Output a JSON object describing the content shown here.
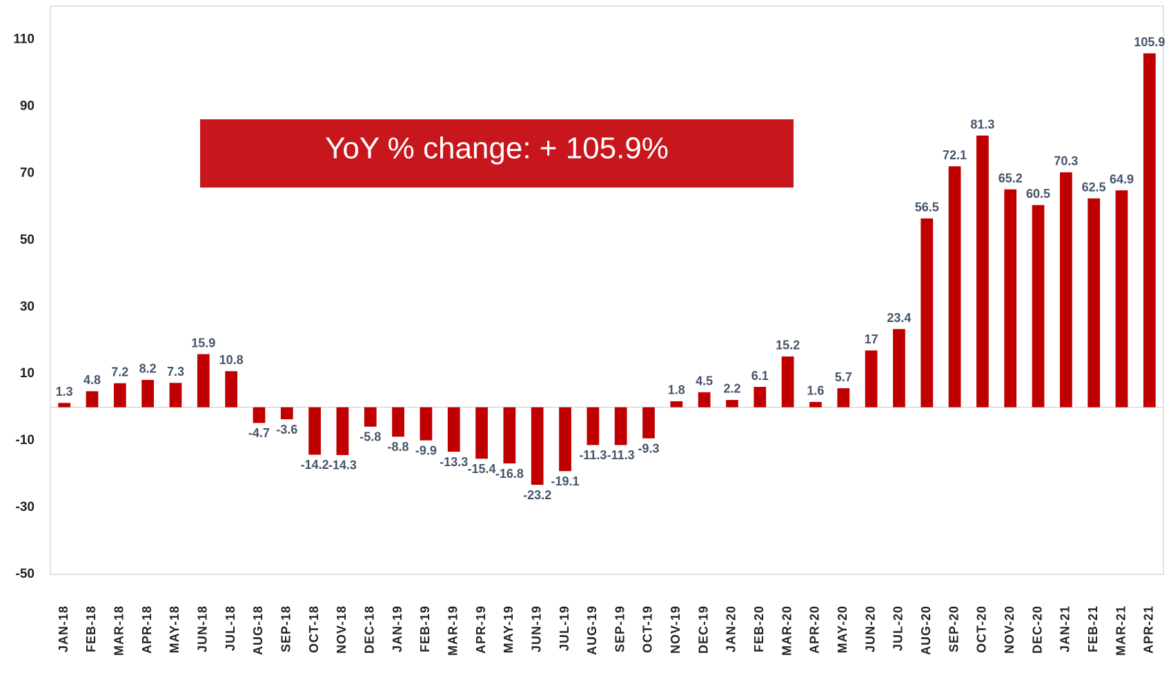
{
  "chart_data": {
    "type": "bar",
    "annotation": "YoY % change: + 105.9%",
    "categories": [
      "JAN-18",
      "FEB-18",
      "MAR-18",
      "APR-18",
      "MAY-18",
      "JUN-18",
      "JUL-18",
      "AUG-18",
      "SEP-18",
      "OCT-18",
      "NOV-18",
      "DEC-18",
      "JAN-19",
      "FEB-19",
      "MAR-19",
      "APR-19",
      "MAY-19",
      "JUN-19",
      "JUL-19",
      "AUG-19",
      "SEP-19",
      "OCT-19",
      "NOV-19",
      "DEC-19",
      "JAN-20",
      "FEB-20",
      "MAR-20",
      "APR-20",
      "MAY-20",
      "JUN-20",
      "JUL-20",
      "AUG-20",
      "SEP-20",
      "OCT-20",
      "NOV-20",
      "DEC-20",
      "JAN-21",
      "FEB-21",
      "MAR-21",
      "APR-21"
    ],
    "values": [
      1.3,
      4.8,
      7.2,
      8.2,
      7.3,
      15.9,
      10.8,
      -4.7,
      -3.6,
      -14.2,
      -14.3,
      -5.8,
      -8.8,
      -9.9,
      -13.3,
      -15.4,
      -16.8,
      -23.2,
      -19.1,
      -11.3,
      -11.3,
      -9.3,
      1.8,
      4.5,
      2.2,
      6.1,
      15.2,
      1.6,
      5.7,
      17,
      23.4,
      56.5,
      72.1,
      81.3,
      65.2,
      60.5,
      70.3,
      62.5,
      64.9,
      105.9
    ],
    "color": "#c00000",
    "ylim": [
      -50,
      120
    ],
    "yticks": [
      110,
      90,
      70,
      50,
      30,
      10,
      -10,
      -30,
      -50
    ],
    "grid": false
  }
}
